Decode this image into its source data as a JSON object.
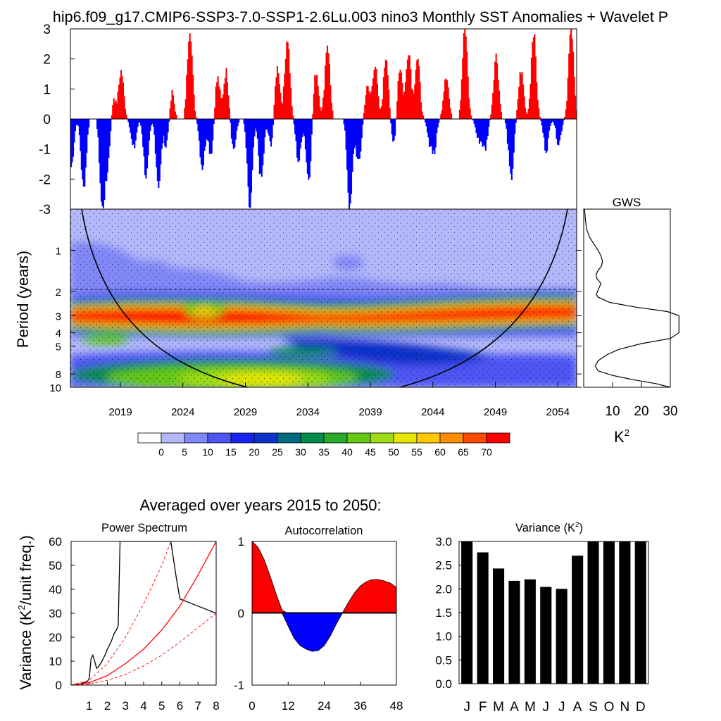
{
  "title": "hip6.f09_g17.CMIP6-SSP3-7.0-SSP1-2.6Lu.003 nino3 Monthly SST Anomalies + Wavelet P",
  "colorbar": {
    "labels": [
      "0",
      "5",
      "10",
      "15",
      "20",
      "25",
      "30",
      "35",
      "40",
      "45",
      "50",
      "55",
      "60",
      "65",
      "70"
    ],
    "colors": [
      "#ffffff",
      "#b3b8fa",
      "#8087f7",
      "#4d55f5",
      "#1a23f2",
      "#0d33cc",
      "#006b80",
      "#008c4d",
      "#2aaa2a",
      "#64c814",
      "#a0dc14",
      "#e6e600",
      "#ffc800",
      "#ff8c00",
      "#ff4b00",
      "#ff0000"
    ]
  },
  "subtitle": "Averaged over years 2015 to 2050:",
  "chart_data": [
    {
      "type": "area",
      "name": "sst-anomaly-timeseries",
      "xlim": [
        2015,
        2055.5
      ],
      "ylim": [
        -3,
        3
      ],
      "yticks": [
        "3",
        "2",
        "1",
        "0",
        "-1",
        "-2",
        "-3"
      ],
      "positive_color": "#ff0000",
      "negative_color": "#0000ff",
      "events": [
        [
          2015.0,
          -1.6
        ],
        [
          2016.0,
          -2.3
        ],
        [
          2017.5,
          -3.0
        ],
        [
          2018.0,
          -2.0
        ],
        [
          2018.3,
          1.1
        ],
        [
          2019.0,
          1.6
        ],
        [
          2020.0,
          -1.0
        ],
        [
          2021.0,
          -1.9
        ],
        [
          2022.0,
          -2.2
        ],
        [
          2022.7,
          -1.2
        ],
        [
          2023.0,
          1.2
        ],
        [
          2024.5,
          3.0
        ],
        [
          2025.5,
          -1.6
        ],
        [
          2026.2,
          -1.2
        ],
        [
          2026.7,
          1.4
        ],
        [
          2027.4,
          1.6
        ],
        [
          2028.0,
          -1.0
        ],
        [
          2029.3,
          -3.0
        ],
        [
          2030.2,
          -2.0
        ],
        [
          2031.0,
          -0.9
        ],
        [
          2031.5,
          1.8
        ],
        [
          2032.3,
          2.7
        ],
        [
          2033.2,
          -1.4
        ],
        [
          2034.0,
          -2.0
        ],
        [
          2034.6,
          1.6
        ],
        [
          2035.5,
          2.5
        ],
        [
          2037.3,
          -3.0
        ],
        [
          2038.0,
          -1.5
        ],
        [
          2038.7,
          1.0
        ],
        [
          2039.3,
          1.8
        ],
        [
          2040.2,
          2.1
        ],
        [
          2040.8,
          -0.9
        ],
        [
          2041.3,
          1.8
        ],
        [
          2042.0,
          2.3
        ],
        [
          2042.7,
          2.0
        ],
        [
          2043.7,
          -0.7
        ],
        [
          2044.0,
          -1.2
        ],
        [
          2045.0,
          1.5
        ],
        [
          2046.5,
          3.0
        ],
        [
          2047.6,
          -0.7
        ],
        [
          2048.1,
          -1.0
        ],
        [
          2049.0,
          2.1
        ],
        [
          2050.2,
          -2.0
        ],
        [
          2051.0,
          1.6
        ],
        [
          2052.0,
          2.9
        ],
        [
          2053.0,
          -1.0
        ],
        [
          2054.0,
          -0.8
        ],
        [
          2055.0,
          3.0
        ]
      ]
    },
    {
      "type": "heatmap",
      "name": "wavelet-power-spectrum",
      "ylabel": "Period (years)",
      "xticks": [
        "2019",
        "2024",
        "2029",
        "2034",
        "2039",
        "2044",
        "2049",
        "2054"
      ],
      "xtick_values": [
        2019,
        2024,
        2029,
        2034,
        2039,
        2044,
        2049,
        2054
      ],
      "yticks": [
        "1",
        "2",
        "3",
        "4",
        "5",
        "8",
        "10"
      ],
      "ytick_values": [
        1,
        2,
        3,
        4,
        5,
        8,
        10
      ],
      "yscale": "log",
      "ylim": [
        0.5,
        10
      ],
      "colorbar_range": [
        0,
        70
      ],
      "cone_of_influence": true,
      "stippling": true
    },
    {
      "type": "line",
      "name": "global-wavelet-spectrum",
      "title": "GWS",
      "xlabel": "K²",
      "xticks": [
        "10",
        "20",
        "30"
      ],
      "xlim": [
        0,
        30
      ],
      "points": [
        [
          0.5,
          0.3
        ],
        [
          0.6,
          0.6
        ],
        [
          0.7,
          1.0
        ],
        [
          0.8,
          2.0
        ],
        [
          0.9,
          3.5
        ],
        [
          1.0,
          5.0
        ],
        [
          1.1,
          6.0
        ],
        [
          1.2,
          6.5
        ],
        [
          1.3,
          6.2
        ],
        [
          1.4,
          5.0
        ],
        [
          1.5,
          4.3
        ],
        [
          1.6,
          4.5
        ],
        [
          1.75,
          6.0
        ],
        [
          1.9,
          5.2
        ],
        [
          2.1,
          4.4
        ],
        [
          2.2,
          5.0
        ],
        [
          2.4,
          9.0
        ],
        [
          2.6,
          18.0
        ],
        [
          2.8,
          29.0
        ],
        [
          3.0,
          45.0
        ],
        [
          3.5,
          65.0
        ],
        [
          4.0,
          50.0
        ],
        [
          4.4,
          30.0
        ],
        [
          4.8,
          20.0
        ],
        [
          5.3,
          12.0
        ],
        [
          5.8,
          8.0
        ],
        [
          6.4,
          5.0
        ],
        [
          7.0,
          4.0
        ],
        [
          7.6,
          5.0
        ],
        [
          8.2,
          10.0
        ],
        [
          8.8,
          17.0
        ],
        [
          9.4,
          25.0
        ],
        [
          10.0,
          30.0
        ]
      ]
    },
    {
      "type": "line",
      "name": "power-spectrum",
      "title": "Power Spectrum",
      "ylabel": "Variance (K²/unit freq.)",
      "xticks": [
        "1",
        "2",
        "3",
        "4",
        "5",
        "6",
        "7",
        "8"
      ],
      "yticks": [
        "0",
        "10",
        "20",
        "30",
        "40",
        "50",
        "60"
      ],
      "xlim": [
        0,
        8
      ],
      "ylim": [
        0,
        60
      ],
      "series": [
        {
          "color": "#000000",
          "style": "solid",
          "points": [
            [
              0,
              0
            ],
            [
              0.5,
              0.5
            ],
            [
              0.9,
              1.5
            ],
            [
              1.0,
              3
            ],
            [
              1.1,
              11
            ],
            [
              1.2,
              12.5
            ],
            [
              1.3,
              10
            ],
            [
              1.4,
              7
            ],
            [
              1.5,
              7.5
            ],
            [
              1.7,
              10
            ],
            [
              1.9,
              13
            ],
            [
              2.0,
              15
            ],
            [
              2.2,
              18
            ],
            [
              2.3,
              20
            ],
            [
              2.4,
              22
            ],
            [
              2.5,
              23
            ],
            [
              2.6,
              25
            ],
            [
              2.7,
              60
            ],
            [
              5.5,
              60
            ],
            [
              5.8,
              45
            ],
            [
              6.0,
              36
            ],
            [
              7.0,
              33
            ],
            [
              8.0,
              30
            ]
          ]
        },
        {
          "color": "#ff0000",
          "style": "solid",
          "points": [
            [
              0,
              0
            ],
            [
              1,
              1
            ],
            [
              2,
              4
            ],
            [
              3,
              9
            ],
            [
              4,
              15
            ],
            [
              5,
              23
            ],
            [
              6,
              33
            ],
            [
              7,
              46
            ],
            [
              8,
              60
            ]
          ]
        },
        {
          "color": "#ff0000",
          "style": "dashed",
          "points": [
            [
              0,
              0
            ],
            [
              1,
              2
            ],
            [
              2,
              9
            ],
            [
              3,
              20
            ],
            [
              4,
              34
            ],
            [
              5,
              50
            ],
            [
              5.5,
              60
            ]
          ]
        },
        {
          "color": "#ff0000",
          "style": "dashed",
          "points": [
            [
              0,
              0
            ],
            [
              1,
              0.5
            ],
            [
              2,
              2
            ],
            [
              3,
              4.5
            ],
            [
              4,
              8
            ],
            [
              5,
              12.5
            ],
            [
              6,
              18
            ],
            [
              7,
              24
            ],
            [
              8,
              30
            ]
          ]
        }
      ]
    },
    {
      "type": "area",
      "name": "autocorrelation",
      "title": "Autocorrelation",
      "xticks": [
        "0",
        "12",
        "24",
        "36",
        "48"
      ],
      "yticks": [
        "1",
        "0",
        "-1"
      ],
      "xlim": [
        0,
        48
      ],
      "ylim": [
        -1,
        1
      ],
      "positive_color": "#ff0000",
      "negative_color": "#0000ff",
      "points": [
        [
          0,
          1.0
        ],
        [
          2,
          0.92
        ],
        [
          4,
          0.75
        ],
        [
          6,
          0.52
        ],
        [
          8,
          0.27
        ],
        [
          10,
          0.04
        ],
        [
          12,
          -0.18
        ],
        [
          14,
          -0.35
        ],
        [
          16,
          -0.45
        ],
        [
          18,
          -0.5
        ],
        [
          20,
          -0.53
        ],
        [
          22,
          -0.52
        ],
        [
          24,
          -0.45
        ],
        [
          26,
          -0.32
        ],
        [
          28,
          -0.15
        ],
        [
          30,
          0.0
        ],
        [
          32,
          0.15
        ],
        [
          34,
          0.28
        ],
        [
          36,
          0.38
        ],
        [
          38,
          0.44
        ],
        [
          40,
          0.47
        ],
        [
          42,
          0.47
        ],
        [
          44,
          0.45
        ],
        [
          46,
          0.42
        ],
        [
          48,
          0.36
        ]
      ]
    },
    {
      "type": "bar",
      "name": "monthly-variance",
      "title": "Variance (K²)",
      "categories": [
        "J",
        "F",
        "M",
        "A",
        "M",
        "J",
        "J",
        "A",
        "S",
        "O",
        "N",
        "D"
      ],
      "values": [
        3.0,
        2.77,
        2.43,
        2.17,
        2.2,
        2.04,
        2.0,
        2.7,
        3.0,
        3.0,
        3.0,
        3.0
      ],
      "yticks": [
        "0.0",
        "0.5",
        "1.0",
        "1.5",
        "2.0",
        "2.5",
        "3.0"
      ],
      "ylim": [
        0.0,
        3.0
      ],
      "bar_color": "#000000"
    }
  ]
}
